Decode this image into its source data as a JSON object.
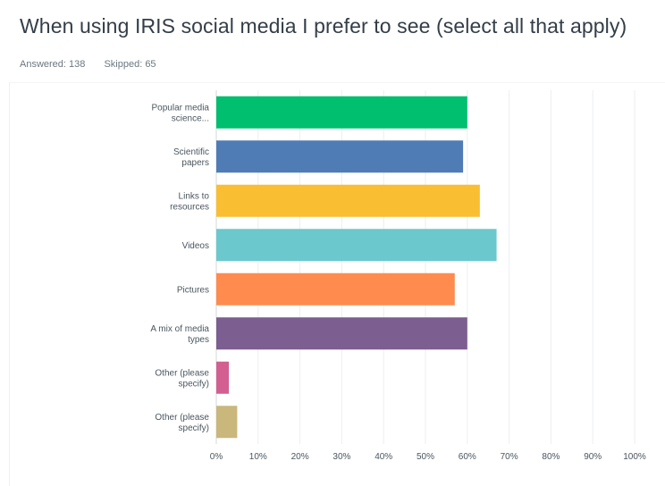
{
  "page": {
    "title": "When using IRIS social media I prefer to see (select all that apply)",
    "answered": "Answered: 138",
    "skipped": "Skipped: 65"
  },
  "chart_data": {
    "type": "bar",
    "orientation": "horizontal",
    "categories": [
      [
        "Popular media",
        "science..."
      ],
      [
        "Scientific",
        "papers"
      ],
      [
        "Links to",
        "resources"
      ],
      [
        "Videos"
      ],
      [
        "Pictures"
      ],
      [
        "A mix of media",
        "types"
      ],
      [
        "Other (please",
        "specify)"
      ],
      [
        "Other (please",
        "specify)"
      ]
    ],
    "values": [
      60,
      59,
      63,
      67,
      57,
      60,
      3,
      5
    ],
    "colors": [
      "#00bf6f",
      "#507cb6",
      "#f9be32",
      "#6bc8cd",
      "#ff8b4f",
      "#7d5e90",
      "#d25f90",
      "#c9b77c"
    ],
    "xlim": [
      0,
      100
    ],
    "x_ticks": [
      "0%",
      "10%",
      "20%",
      "30%",
      "40%",
      "50%",
      "60%",
      "70%",
      "80%",
      "90%",
      "100%"
    ],
    "grid": true
  }
}
